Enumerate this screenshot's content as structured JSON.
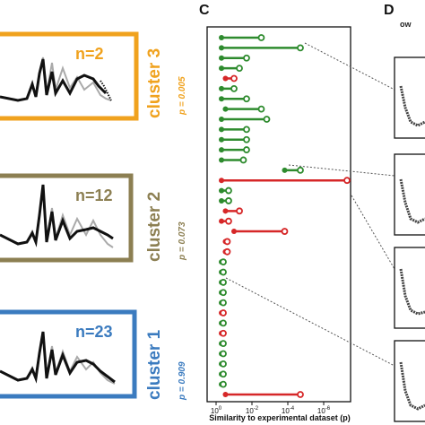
{
  "panels": {
    "c_letter": "C",
    "d_letter": "D",
    "d_header": "ow"
  },
  "clusters": [
    {
      "name": "cluster 3",
      "n_label": "n=2",
      "p_label": "p = 0.005",
      "color": "#f0a21e"
    },
    {
      "name": "cluster 2",
      "n_label": "n=12",
      "p_label": "p = 0.073",
      "color": "#8c7f52"
    },
    {
      "name": "cluster 1",
      "n_label": "n=23",
      "p_label": "p = 0.909",
      "color": "#3b7bbf"
    }
  ],
  "chart_data": {
    "type": "scatter",
    "subtype": "dumbbell",
    "xlabel": "Similarity to experimental dataset (p)",
    "x_scale": "log-reversed",
    "x_ticks": [
      "10^0",
      "10^-2",
      "10^-4",
      "10^-6"
    ],
    "xlim": [
      1,
      1e-07
    ],
    "colors": {
      "significant": "#2e8b2e",
      "not_significant": "#d62728"
    },
    "rows": [
      {
        "start": 0.5,
        "end": 0.003,
        "group": "green"
      },
      {
        "start": 0.5,
        "end": 2e-05,
        "group": "green"
      },
      {
        "start": 0.5,
        "end": 0.02,
        "group": "green"
      },
      {
        "start": 0.5,
        "end": 0.05,
        "group": "green"
      },
      {
        "start": 0.3,
        "end": 0.1,
        "group": "red"
      },
      {
        "start": 0.5,
        "end": 0.1,
        "group": "green"
      },
      {
        "start": 0.5,
        "end": 0.02,
        "group": "green"
      },
      {
        "start": 0.3,
        "end": 0.003,
        "group": "green"
      },
      {
        "start": 0.5,
        "end": 0.0015,
        "group": "green"
      },
      {
        "start": 0.5,
        "end": 0.02,
        "group": "green"
      },
      {
        "start": 0.5,
        "end": 0.02,
        "group": "green"
      },
      {
        "start": 0.5,
        "end": 0.02,
        "group": "green"
      },
      {
        "start": 0.5,
        "end": 0.03,
        "group": "green"
      },
      {
        "start": 0.00015,
        "end": 2e-05,
        "group": "green"
      },
      {
        "start": 0.5,
        "end": 5e-08,
        "group": "red"
      },
      {
        "start": 0.5,
        "end": 0.2,
        "group": "green"
      },
      {
        "start": 0.5,
        "end": 0.2,
        "group": "green"
      },
      {
        "start": 0.3,
        "end": 0.05,
        "group": "red"
      },
      {
        "start": 0.5,
        "end": 0.2,
        "group": "red"
      },
      {
        "start": 0.1,
        "end": 0.00015,
        "group": "red"
      },
      {
        "start": 0.3,
        "end": 0.3,
        "group": "red"
      },
      {
        "start": 0.3,
        "end": 0.3,
        "group": "red"
      },
      {
        "start": 0.5,
        "end": 0.5,
        "group": "green"
      },
      {
        "start": 0.5,
        "end": 0.5,
        "group": "green"
      },
      {
        "start": 0.5,
        "end": 0.5,
        "group": "green"
      },
      {
        "start": 0.5,
        "end": 0.5,
        "group": "green"
      },
      {
        "start": 0.5,
        "end": 0.5,
        "group": "green"
      },
      {
        "start": 0.5,
        "end": 0.5,
        "group": "red"
      },
      {
        "start": 0.5,
        "end": 0.5,
        "group": "green"
      },
      {
        "start": 0.5,
        "end": 0.5,
        "group": "red"
      },
      {
        "start": 0.5,
        "end": 0.5,
        "group": "green"
      },
      {
        "start": 0.5,
        "end": 0.5,
        "group": "green"
      },
      {
        "start": 0.5,
        "end": 0.5,
        "group": "green"
      },
      {
        "start": 0.5,
        "end": 0.5,
        "group": "green"
      },
      {
        "start": 0.5,
        "end": 0.5,
        "group": "green"
      },
      {
        "start": 0.3,
        "end": 2e-05,
        "group": "red"
      }
    ]
  }
}
